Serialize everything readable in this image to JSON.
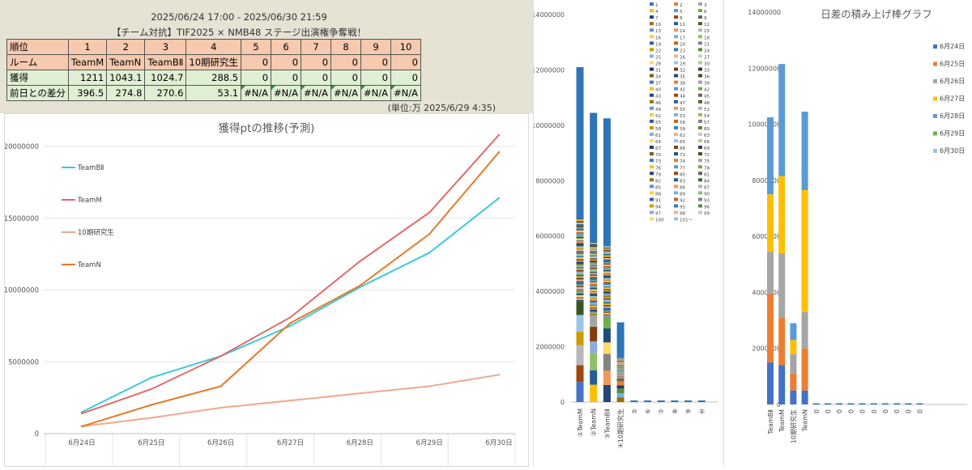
{
  "header": {
    "period": "2025/06/24 17:00 - 2025/06/30 21:59",
    "title": "【チーム対抗】TIF2025 × NMB48 ステージ出演権争奪戦！",
    "unit_note": "(単位:万  2025/6/29 4:35)"
  },
  "ranking_table": {
    "rank_label": "順位",
    "ranks": [
      "1",
      "2",
      "3",
      "4",
      "5",
      "6",
      "7",
      "8",
      "9",
      "10"
    ],
    "room_label": "ルーム",
    "rooms": [
      "TeamM",
      "TeamN",
      "TeamBⅡ",
      "10期研究生",
      "0",
      "0",
      "0",
      "0",
      "0",
      "0"
    ],
    "points_label": "獲得",
    "points": [
      "1211",
      "1043.1",
      "1024.7",
      "288.5",
      "0",
      "0",
      "0",
      "0",
      "0",
      "0"
    ],
    "diff_label": "前日との差分",
    "diffs": [
      "396.5",
      "274.8",
      "270.6",
      "53.1",
      "#N/A",
      "#N/A",
      "#N/A",
      "#N/A",
      "#N/A",
      "#N/A"
    ]
  },
  "chart_data": [
    {
      "type": "line",
      "title": "獲得ptの推移(予測)",
      "categories": [
        "6月24日",
        "6月25日",
        "6月26日",
        "6月27日",
        "6月28日",
        "6月29日",
        "6月30日"
      ],
      "ylim": [
        0,
        20000000
      ],
      "yticks": [
        "0",
        "5000000",
        "10000000",
        "15000000",
        "20000000"
      ],
      "grid": true,
      "series": [
        {
          "name": "TeamBⅡ",
          "color": "#3cc9d6",
          "values": [
            1500000,
            3900000,
            5400000,
            7500000,
            10200000,
            12600000,
            16400000
          ]
        },
        {
          "name": "TeamM",
          "color": "#e26a6a",
          "values": [
            1400000,
            3100000,
            5400000,
            8100000,
            12000000,
            15400000,
            20800000
          ]
        },
        {
          "name": "10期研究生",
          "color": "#eda98c",
          "values": [
            500000,
            1100000,
            1800000,
            2300000,
            2800000,
            3300000,
            4100000
          ]
        },
        {
          "name": "TeamN",
          "color": "#e47a2a",
          "values": [
            500000,
            2000000,
            3300000,
            7700000,
            10300000,
            13900000,
            19600000
          ]
        }
      ]
    },
    {
      "type": "bar",
      "stacked": true,
      "categories": [
        "①TeamM",
        "②TeamN",
        "③TeamBⅡ",
        "④10期研究生",
        "⑤",
        "⑥",
        "⑦",
        "⑧",
        "⑨",
        "⑩"
      ],
      "totals": [
        12100000,
        10450000,
        10250000,
        2880000,
        0,
        0,
        0,
        0,
        0,
        0
      ],
      "ylim": [
        0,
        14000000
      ],
      "yticks": [
        "0",
        "2000000",
        "4000000",
        "6000000",
        "8000000",
        "10000000",
        "12000000",
        "14000000"
      ],
      "legend_items": [
        "1",
        "2",
        "3",
        "4",
        "5",
        "6",
        "7",
        "8",
        "9",
        "10",
        "11",
        "12",
        "13",
        "14",
        "15",
        "16",
        "17",
        "18",
        "19",
        "20",
        "21",
        "22",
        "23",
        "24",
        "25",
        "26",
        "27",
        "28",
        "29",
        "30",
        "31",
        "32",
        "33",
        "34",
        "35",
        "36",
        "37",
        "38",
        "39",
        "40",
        "41",
        "42",
        "43",
        "44",
        "45",
        "46",
        "47",
        "48",
        "49",
        "50",
        "51",
        "52",
        "53",
        "54",
        "55",
        "56",
        "57",
        "58",
        "59",
        "60",
        "61",
        "62",
        "63",
        "64",
        "65",
        "66",
        "67",
        "68",
        "69",
        "70",
        "71",
        "72",
        "73",
        "74",
        "75",
        "76",
        "77",
        "78",
        "79",
        "80",
        "81",
        "82",
        "83",
        "84",
        "85",
        "86",
        "87",
        "88",
        "89",
        "90",
        "91",
        "92",
        "93",
        "94",
        "95",
        "96",
        "97",
        "98",
        "99",
        "100",
        "101〜"
      ],
      "palette": [
        "#4472c4",
        "#ed7d31",
        "#a5a5a5",
        "#ffc000",
        "#5b9bd5",
        "#70ad47",
        "#264478",
        "#9e480e",
        "#636363",
        "#997300",
        "#255e91",
        "#43682b",
        "#698ed0",
        "#f1975a",
        "#b7b7b7",
        "#ffcd33",
        "#7cafdd",
        "#8cc168",
        "#335aa1",
        "#d26012",
        "#848484",
        "#cc9a00",
        "#327dc2",
        "#5a8a39",
        "#8faadc",
        "#f4b183",
        "#c9c9c9",
        "#ffd966",
        "#9dc3e6",
        "#a9d18e",
        "#203864",
        "#843c0c",
        "#404040",
        "#7f6000",
        "#1f4e79",
        "#385723"
      ],
      "legend_placement": "right"
    },
    {
      "type": "bar",
      "stacked": true,
      "title": "日差の積み上げ棒グラフ",
      "categories": [
        "TeamBⅡ",
        "TeamM",
        "10期研究生",
        "TeamN",
        "0",
        "0",
        "0",
        "0",
        "0",
        "0",
        "0",
        "0",
        "0",
        "0"
      ],
      "ylim": [
        0,
        14000000
      ],
      "yticks": [
        "0",
        "2000000",
        "4000000",
        "6000000",
        "8000000",
        "10000000",
        "12000000",
        "14000000"
      ],
      "legend_placement": "right",
      "series": [
        {
          "name": "6月24日",
          "color": "#4472c4",
          "values": [
            1500000,
            1400000,
            500000,
            500000,
            0,
            0,
            0,
            0,
            0,
            0,
            0,
            0,
            0,
            0
          ]
        },
        {
          "name": "6月25日",
          "color": "#ed7d31",
          "values": [
            2450000,
            1700000,
            600000,
            1500000,
            0,
            0,
            0,
            0,
            0,
            0,
            0,
            0,
            0,
            0
          ]
        },
        {
          "name": "6月26日",
          "color": "#a5a5a5",
          "values": [
            1500000,
            2300000,
            700000,
            1300000,
            0,
            0,
            0,
            0,
            0,
            0,
            0,
            0,
            0,
            0
          ]
        },
        {
          "name": "6月27日",
          "color": "#ffc000",
          "values": [
            2050000,
            2750000,
            500000,
            4350000,
            0,
            0,
            0,
            0,
            0,
            0,
            0,
            0,
            0,
            0
          ]
        },
        {
          "name": "6月28日",
          "color": "#5b9bd5",
          "values": [
            2750000,
            4000000,
            600000,
            2800000,
            0,
            0,
            0,
            0,
            0,
            0,
            0,
            0,
            0,
            0
          ]
        },
        {
          "name": "6月29日",
          "color": "#70ad47",
          "values": [
            0,
            0,
            0,
            0,
            0,
            0,
            0,
            0,
            0,
            0,
            0,
            0,
            0,
            0
          ]
        },
        {
          "name": "6月30日",
          "color": "#9dc3e6",
          "values": [
            0,
            0,
            0,
            0,
            0,
            0,
            0,
            0,
            0,
            0,
            0,
            0,
            0,
            0
          ]
        }
      ]
    }
  ]
}
